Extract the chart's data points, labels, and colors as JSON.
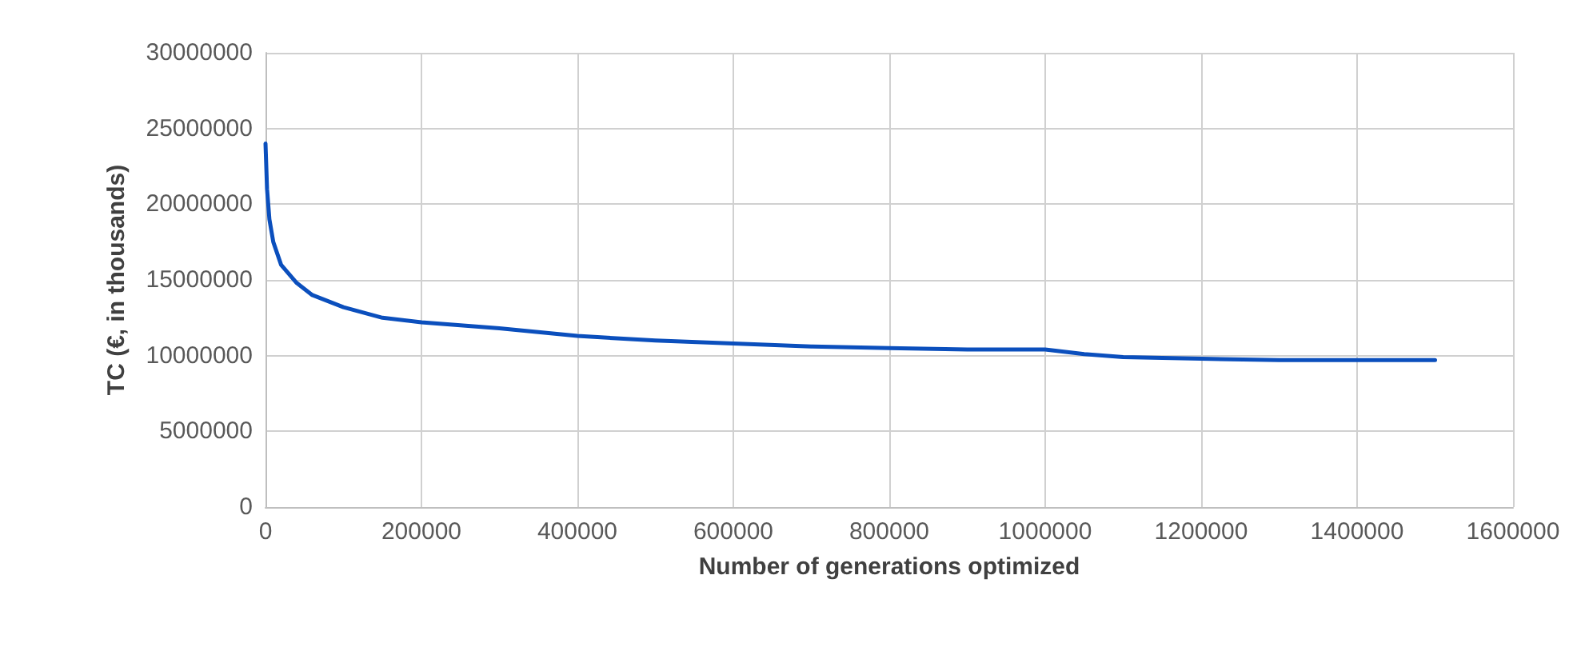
{
  "chart_data": {
    "type": "line",
    "xlabel": "Number of generations optimized",
    "ylabel": "TC (€, in thousands)",
    "series": [
      {
        "color": "#0b4fbd",
        "x": [
          0,
          2000,
          5000,
          10000,
          20000,
          40000,
          60000,
          100000,
          150000,
          200000,
          300000,
          400000,
          500000,
          600000,
          700000,
          800000,
          900000,
          1000000,
          1050000,
          1100000,
          1200000,
          1300000,
          1500000
        ],
        "values": [
          24000000,
          21000000,
          19000000,
          17500000,
          16000000,
          14800000,
          14000000,
          13200000,
          12500000,
          12200000,
          11800000,
          11300000,
          11000000,
          10800000,
          10600000,
          10500000,
          10400000,
          10400000,
          10100000,
          9900000,
          9800000,
          9700000,
          9700000
        ]
      }
    ],
    "xlim": [
      0,
      1600000
    ],
    "xticks": [
      0,
      200000,
      400000,
      600000,
      800000,
      1000000,
      1200000,
      1400000,
      1600000
    ],
    "ylim": [
      0,
      30000000
    ],
    "yticks": [
      0,
      5000000,
      10000000,
      15000000,
      20000000,
      25000000,
      30000000
    ],
    "grid": true,
    "marker": "none",
    "line_style": "solid"
  }
}
